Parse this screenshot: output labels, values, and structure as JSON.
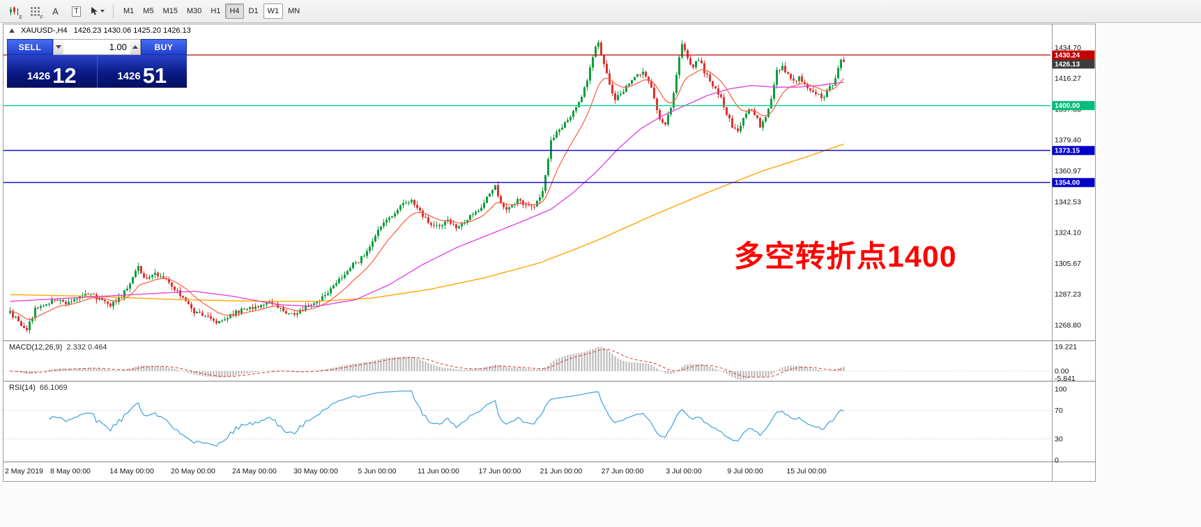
{
  "toolbar": {
    "tools": [
      {
        "name": "chart-style-icon",
        "sub": "E"
      },
      {
        "name": "grid-icon",
        "sub": "F"
      },
      {
        "name": "font-tool-icon",
        "glyph": "A"
      },
      {
        "name": "text-label-tool-icon",
        "glyph": "T"
      },
      {
        "name": "cursor-tool-icon"
      }
    ],
    "timeframes": [
      "M1",
      "M5",
      "M15",
      "M30",
      "H1",
      "H4",
      "D1",
      "W1",
      "MN"
    ],
    "active": "H4",
    "outlined": "W1"
  },
  "chart": {
    "header": {
      "symbol": "XAUUSD-,H4",
      "ohlc": "1426.23 1430.06 1425.20 1426.13"
    },
    "trade_panel": {
      "sell_label": "SELL",
      "buy_label": "BUY",
      "volume": "1.00",
      "sell_price_main": "1426",
      "sell_price_pips": "12",
      "buy_price_main": "1426",
      "buy_price_pips": "51"
    },
    "annotation": {
      "text": "多空转折点1400",
      "color": "#ff0000"
    },
    "price_axis": {
      "ticks": [
        1434.7,
        1416.27,
        1397.83,
        1379.4,
        1360.97,
        1342.53,
        1324.1,
        1305.67,
        1287.23,
        1268.8
      ],
      "labels": [
        {
          "price": 1430.24,
          "bg": "#c40000",
          "fg": "#ffffff"
        },
        {
          "price": 1426.13,
          "bg": "#3c3c3c",
          "fg": "#ffffff"
        },
        {
          "price": 1400.0,
          "bg": "#00bd7a",
          "fg": "#ffffff"
        },
        {
          "price": 1373.15,
          "bg": "#0000c8",
          "fg": "#ffffff"
        },
        {
          "price": 1354.0,
          "bg": "#0000c8",
          "fg": "#ffffff"
        }
      ]
    },
    "hlines": [
      {
        "price": 1430.24,
        "color": "#cc0000"
      },
      {
        "price": 1400.0,
        "color": "#00d685"
      },
      {
        "price": 1373.15,
        "color": "#0000c8"
      },
      {
        "price": 1354.0,
        "color": "#0000c8"
      }
    ]
  },
  "macd": {
    "label": "MACD(12,26,9)",
    "values": "2.332 0.464",
    "ticks": [
      {
        "label": "19.221",
        "value": 19.221
      },
      {
        "label": "0.00",
        "value": 0
      },
      {
        "label": "-5.841",
        "value": -5.841
      }
    ],
    "max_value": 19.221
  },
  "rsi": {
    "label": "RSI(14)",
    "value": "66.1069",
    "period": 14,
    "levels": [
      70,
      30
    ],
    "ticks": [
      {
        "label": "100",
        "value": 100
      },
      {
        "label": "70",
        "value": 70
      },
      {
        "label": "30",
        "value": 30
      },
      {
        "label": "0",
        "value": 0
      }
    ]
  },
  "time_axis": [
    "2 May 2019",
    "8 May 00:00",
    "14 May 00:00",
    "20 May 00:00",
    "24 May 00:00",
    "30 May 00:00",
    "5 Jun 00:00",
    "11 Jun 00:00",
    "17 Jun 00:00",
    "21 Jun 00:00",
    "27 Jun 00:00",
    "3 Jul 00:00",
    "9 Jul 00:00",
    "15 Jul 00:00"
  ],
  "chart_data": {
    "type": "candlestick",
    "symbol": "XAUUSD",
    "timeframe": "H4",
    "n_candles": 300,
    "last_close": 1426.13,
    "ylim": [
      1262,
      1449
    ],
    "colors": {
      "up": "#0c9e3e",
      "down": "#e03030",
      "ma_fast": "#ff5a3c",
      "ma_mid": "#e23ae2",
      "ma_slow": "#ffa500",
      "macd_hist": "#b6b6b6",
      "macd_signal": "#e03030",
      "rsi_line": "#3f9edd"
    },
    "ma_fast_period": 13,
    "close_waypoints": [
      [
        0,
        1276
      ],
      [
        3,
        1271
      ],
      [
        6,
        1266
      ],
      [
        9,
        1278
      ],
      [
        13,
        1281
      ],
      [
        16,
        1285
      ],
      [
        20,
        1282
      ],
      [
        24,
        1285
      ],
      [
        28,
        1288
      ],
      [
        32,
        1284
      ],
      [
        36,
        1280
      ],
      [
        40,
        1286
      ],
      [
        44,
        1297
      ],
      [
        46,
        1303
      ],
      [
        49,
        1296
      ],
      [
        52,
        1300
      ],
      [
        55,
        1297
      ],
      [
        58,
        1293
      ],
      [
        62,
        1285
      ],
      [
        66,
        1277
      ],
      [
        70,
        1274
      ],
      [
        74,
        1270
      ],
      [
        78,
        1274
      ],
      [
        82,
        1277
      ],
      [
        86,
        1279
      ],
      [
        90,
        1281
      ],
      [
        94,
        1283
      ],
      [
        98,
        1277
      ],
      [
        102,
        1276
      ],
      [
        106,
        1279
      ],
      [
        110,
        1282
      ],
      [
        113,
        1287
      ],
      [
        116,
        1292
      ],
      [
        119,
        1298
      ],
      [
        122,
        1304
      ],
      [
        125,
        1307
      ],
      [
        128,
        1313
      ],
      [
        132,
        1325
      ],
      [
        135,
        1332
      ],
      [
        138,
        1336
      ],
      [
        141,
        1341
      ],
      [
        144,
        1343
      ],
      [
        147,
        1336
      ],
      [
        150,
        1330
      ],
      [
        154,
        1327
      ],
      [
        157,
        1332
      ],
      [
        160,
        1326
      ],
      [
        163,
        1330
      ],
      [
        166,
        1335
      ],
      [
        169,
        1340
      ],
      [
        172,
        1347
      ],
      [
        174,
        1352
      ],
      [
        176,
        1341
      ],
      [
        179,
        1338
      ],
      [
        182,
        1343
      ],
      [
        185,
        1340
      ],
      [
        188,
        1339
      ],
      [
        191,
        1348
      ],
      [
        194,
        1380
      ],
      [
        198,
        1388
      ],
      [
        201,
        1394
      ],
      [
        204,
        1402
      ],
      [
        207,
        1415
      ],
      [
        209,
        1430
      ],
      [
        211,
        1438
      ],
      [
        213,
        1424
      ],
      [
        215,
        1412
      ],
      [
        217,
        1404
      ],
      [
        219,
        1407
      ],
      [
        221,
        1412
      ],
      [
        224,
        1418
      ],
      [
        227,
        1420
      ],
      [
        229,
        1414
      ],
      [
        231,
        1405
      ],
      [
        233,
        1392
      ],
      [
        235,
        1389
      ],
      [
        237,
        1398
      ],
      [
        239,
        1419
      ],
      [
        241,
        1437
      ],
      [
        243,
        1428
      ],
      [
        245,
        1423
      ],
      [
        247,
        1428
      ],
      [
        249,
        1420
      ],
      [
        251,
        1415
      ],
      [
        253,
        1410
      ],
      [
        255,
        1404
      ],
      [
        257,
        1395
      ],
      [
        259,
        1388
      ],
      [
        261,
        1385
      ],
      [
        263,
        1392
      ],
      [
        265,
        1398
      ],
      [
        267,
        1395
      ],
      [
        269,
        1388
      ],
      [
        271,
        1393
      ],
      [
        273,
        1405
      ],
      [
        275,
        1421
      ],
      [
        277,
        1424
      ],
      [
        279,
        1418
      ],
      [
        281,
        1414
      ],
      [
        283,
        1417
      ],
      [
        285,
        1413
      ],
      [
        287,
        1410
      ],
      [
        289,
        1408
      ],
      [
        291,
        1404
      ],
      [
        293,
        1408
      ],
      [
        295,
        1413
      ],
      [
        297,
        1422
      ],
      [
        298,
        1428
      ],
      [
        299,
        1426.13
      ]
    ],
    "ma_mid_waypoints": [
      [
        0,
        1283
      ],
      [
        22,
        1285
      ],
      [
        44,
        1287
      ],
      [
        66,
        1289
      ],
      [
        80,
        1286
      ],
      [
        96,
        1281
      ],
      [
        110,
        1280
      ],
      [
        124,
        1284
      ],
      [
        136,
        1293
      ],
      [
        148,
        1305
      ],
      [
        160,
        1315
      ],
      [
        172,
        1323
      ],
      [
        184,
        1331
      ],
      [
        194,
        1338
      ],
      [
        202,
        1348
      ],
      [
        210,
        1360
      ],
      [
        218,
        1374
      ],
      [
        226,
        1386
      ],
      [
        234,
        1394
      ],
      [
        242,
        1400
      ],
      [
        250,
        1406
      ],
      [
        258,
        1410
      ],
      [
        266,
        1412
      ],
      [
        274,
        1411
      ],
      [
        282,
        1411
      ],
      [
        290,
        1412
      ],
      [
        299,
        1414
      ]
    ],
    "ma_slow_waypoints": [
      [
        0,
        1287
      ],
      [
        30,
        1286
      ],
      [
        60,
        1284
      ],
      [
        90,
        1283
      ],
      [
        110,
        1283
      ],
      [
        130,
        1285
      ],
      [
        150,
        1290
      ],
      [
        170,
        1297
      ],
      [
        190,
        1306
      ],
      [
        210,
        1319
      ],
      [
        230,
        1334
      ],
      [
        250,
        1348
      ],
      [
        270,
        1361
      ],
      [
        285,
        1369
      ],
      [
        299,
        1377
      ]
    ]
  }
}
